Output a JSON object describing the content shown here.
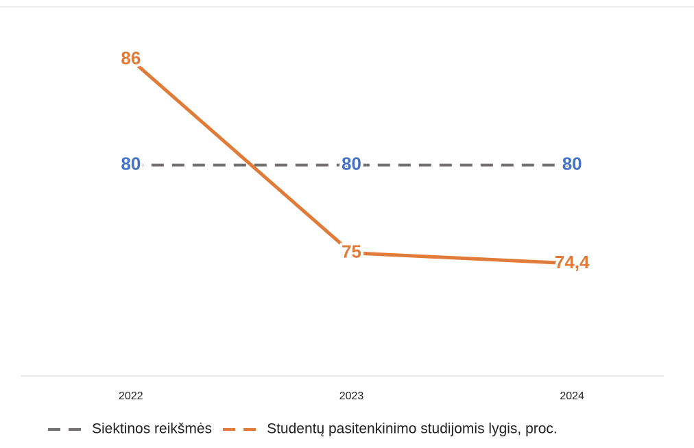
{
  "chart_data": {
    "type": "line",
    "categories": [
      "2022",
      "2023",
      "2024"
    ],
    "ylim": [
      68,
      89
    ],
    "series": [
      {
        "name": "Siektinos reikšmės",
        "color": "#767171",
        "label_color": "#4472c4",
        "dashed": true,
        "values": [
          80,
          80,
          80
        ]
      },
      {
        "name": "Studentų pasitenkinimo studijomis lygis, proc.",
        "color": "#e07b39",
        "label_color": "#e07b39",
        "dashed": false,
        "values": [
          86,
          75,
          74.4
        ],
        "value_labels": [
          "86",
          "75",
          "74,4"
        ]
      }
    ]
  }
}
